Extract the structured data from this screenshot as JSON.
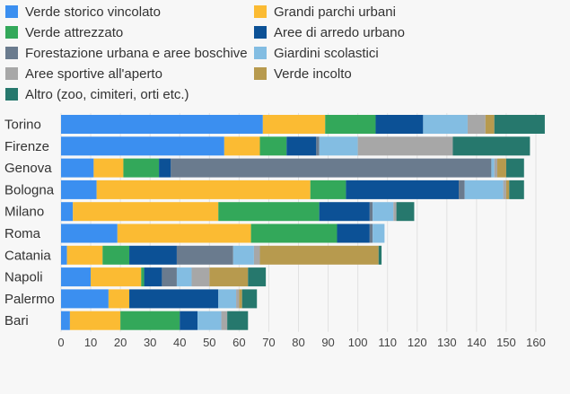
{
  "colors": {
    "background": "#f7f7f7",
    "text": "#333333",
    "axis_text": "#444444",
    "grid": "#e2e2e2"
  },
  "chart_data": {
    "type": "bar",
    "orientation": "horizontal",
    "stacked": true,
    "title": "",
    "xlabel": "",
    "ylabel": "",
    "xlim": [
      0,
      160
    ],
    "xticks": [
      0,
      10,
      20,
      30,
      40,
      50,
      60,
      70,
      80,
      90,
      100,
      110,
      120,
      130,
      140,
      150,
      160
    ],
    "grid": true,
    "legend_position": "top",
    "categories": [
      "Torino",
      "Firenze",
      "Genova",
      "Bologna",
      "Milano",
      "Roma",
      "Catania",
      "Napoli",
      "Palermo",
      "Bari"
    ],
    "series": [
      {
        "name": "Verde storico vincolato",
        "color": "#3b8ff0",
        "values": [
          68,
          55,
          11,
          12,
          4,
          19,
          2,
          10,
          16,
          3
        ]
      },
      {
        "name": "Grandi parchi urbani",
        "color": "#fbbb33",
        "values": [
          21,
          12,
          10,
          72,
          49,
          45,
          12,
          17,
          7,
          17
        ]
      },
      {
        "name": "Verde attrezzato",
        "color": "#33a85a",
        "values": [
          17,
          9,
          12,
          12,
          34,
          29,
          9,
          1,
          0,
          20
        ]
      },
      {
        "name": "Aree di arredo urbano",
        "color": "#0c5196",
        "values": [
          16,
          10,
          4,
          38,
          17,
          11,
          16,
          6,
          30,
          6
        ]
      },
      {
        "name": "Forestazione urbana e aree boschive",
        "color": "#6a7b8e",
        "values": [
          0,
          1,
          108,
          2,
          1,
          1,
          19,
          5,
          0,
          0
        ]
      },
      {
        "name": "Giardini scolastici",
        "color": "#83bde2",
        "values": [
          15,
          13,
          1,
          13,
          7,
          4,
          7,
          5,
          6,
          8
        ]
      },
      {
        "name": "Aree sportive all'aperto",
        "color": "#a7a7a7",
        "values": [
          6,
          32,
          1,
          1,
          1,
          0,
          2,
          6,
          1,
          2
        ]
      },
      {
        "name": "Verde incolto",
        "color": "#b79a4e",
        "values": [
          3,
          0,
          3,
          1,
          0,
          0,
          40,
          13,
          1,
          0
        ]
      },
      {
        "name": "Altro (zoo, cimiteri, orti etc.)",
        "color": "#26786d",
        "values": [
          17,
          26,
          6,
          5,
          6,
          0,
          1,
          6,
          5,
          7
        ]
      }
    ]
  }
}
